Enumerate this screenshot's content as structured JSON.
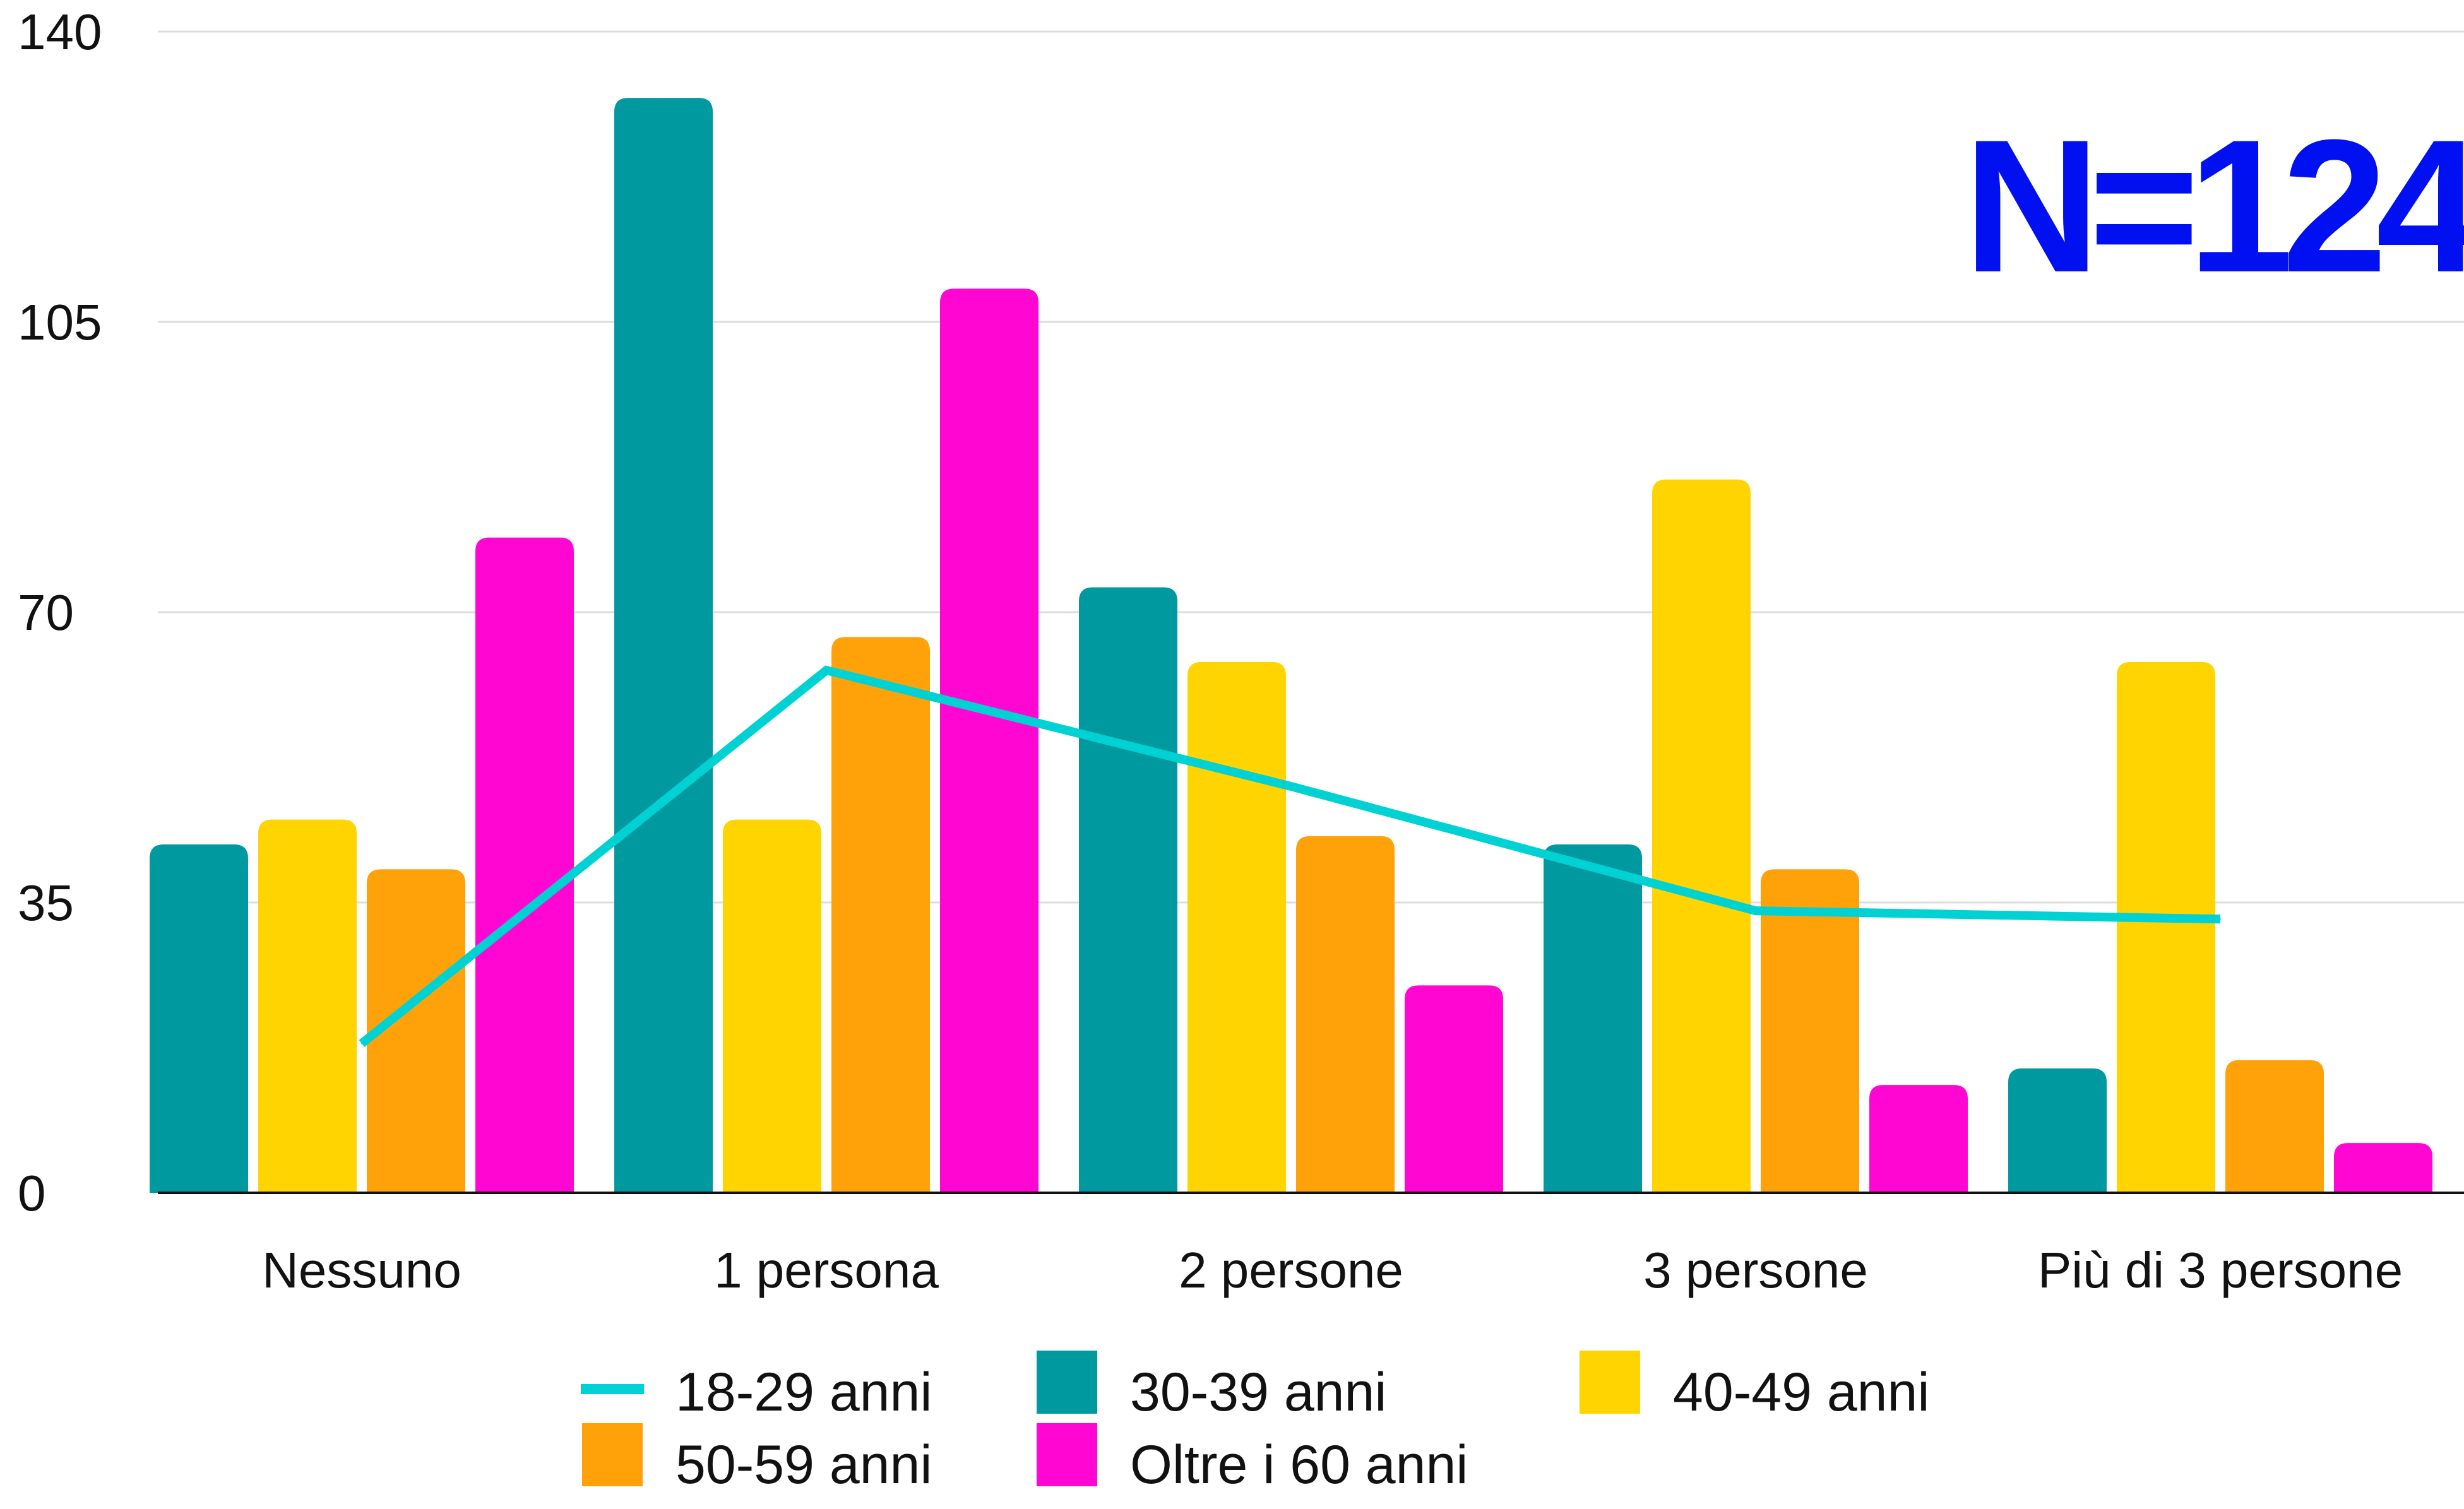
{
  "chart_data": {
    "type": "bar",
    "categories": [
      "Nessuno",
      "1 persona",
      "2 persone",
      "3 persone",
      "Più di 3 persone"
    ],
    "yticks": [
      0,
      35,
      70,
      105,
      140
    ],
    "ylim": [
      0,
      140
    ],
    "grid": true,
    "legend_position": "bottom",
    "annotation": "N=124",
    "series": [
      {
        "name": "18-29 anni",
        "kind": "line",
        "color": "#00D2D3",
        "values": [
          18,
          63,
          49,
          34,
          33
        ]
      },
      {
        "name": "30-39 anni",
        "kind": "bar",
        "color": "#00999F",
        "values": [
          42,
          132,
          73,
          42,
          15
        ]
      },
      {
        "name": "40-49 anni",
        "kind": "bar",
        "color": "#FFD400",
        "values": [
          45,
          45,
          64,
          86,
          64
        ]
      },
      {
        "name": "50-59 anni",
        "kind": "bar",
        "color": "#FFA20A",
        "values": [
          39,
          67,
          43,
          39,
          16
        ]
      },
      {
        "name": "Oltre i 60 anni",
        "kind": "bar",
        "color": "#FF06D3",
        "values": [
          79,
          109,
          25,
          13,
          6
        ]
      }
    ],
    "colors": {
      "grid": "#DDDDDD",
      "axis": "#111111",
      "annotation": "#0010F0"
    }
  }
}
